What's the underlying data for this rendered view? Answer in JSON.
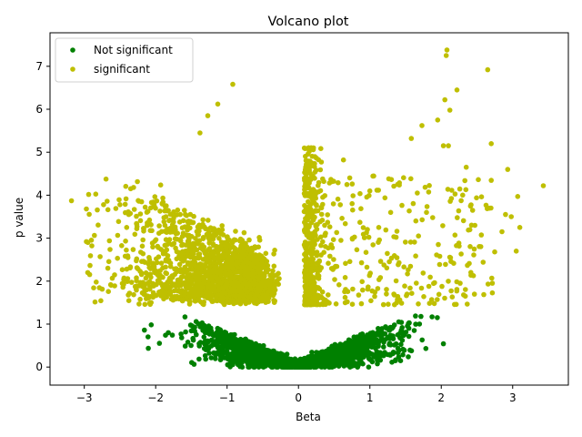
{
  "chart_data": {
    "type": "scatter",
    "title": "Volcano plot",
    "xlabel": "Beta",
    "ylabel": "p value",
    "xlim": [
      -3.48,
      3.78
    ],
    "ylim": [
      -0.42,
      7.78
    ],
    "xticks": [
      -3,
      -2,
      -1,
      0,
      1,
      2,
      3
    ],
    "yticks": [
      0,
      1,
      2,
      3,
      4,
      5,
      6,
      7
    ],
    "grid": false,
    "legend_position": "top-left",
    "threshold": 1.45,
    "series": [
      {
        "name": "Not significant",
        "color": "#008000",
        "description": "points with p value below threshold, dense V-shaped cloud from Beta about -2.1 to 2.1"
      },
      {
        "name": "significant",
        "color": "#bfbf00",
        "description": "points with p value above threshold, spread widely on both sides"
      }
    ],
    "notable_points": [
      {
        "x": 2.08,
        "y": 7.38
      },
      {
        "x": 2.07,
        "y": 7.25
      },
      {
        "x": 2.65,
        "y": 6.92
      },
      {
        "x": -0.92,
        "y": 6.58
      },
      {
        "x": 2.22,
        "y": 6.45
      },
      {
        "x": 2.05,
        "y": 6.22
      },
      {
        "x": -1.13,
        "y": 6.12
      },
      {
        "x": 2.12,
        "y": 5.98
      },
      {
        "x": -1.27,
        "y": 5.85
      },
      {
        "x": 1.95,
        "y": 5.75
      },
      {
        "x": 1.73,
        "y": 5.62
      },
      {
        "x": -1.38,
        "y": 5.45
      },
      {
        "x": 1.58,
        "y": 5.32
      },
      {
        "x": 2.7,
        "y": 5.2
      },
      {
        "x": 2.03,
        "y": 5.15
      },
      {
        "x": 2.1,
        "y": 5.15
      },
      {
        "x": 0.63,
        "y": 4.82
      },
      {
        "x": 2.93,
        "y": 4.6
      },
      {
        "x": 3.43,
        "y": 4.22
      },
      {
        "x": 3.07,
        "y": 3.97
      },
      {
        "x": -3.18,
        "y": 3.87
      },
      {
        "x": -2.68,
        "y": 3.86
      },
      {
        "x": -2.35,
        "y": 4.15
      },
      {
        "x": 2.35,
        "y": 4.65
      },
      {
        "x": 3.1,
        "y": 3.25
      },
      {
        "x": 3.05,
        "y": 2.7
      },
      {
        "x": -2.97,
        "y": 3.68
      },
      {
        "x": -2.97,
        "y": 2.92
      },
      {
        "x": -2.95,
        "y": 2.9
      },
      {
        "x": 2.85,
        "y": 3.15
      },
      {
        "x": 2.98,
        "y": 3.5
      },
      {
        "x": 2.9,
        "y": 3.55
      },
      {
        "x": 1.0,
        "y": 4.1
      }
    ]
  }
}
